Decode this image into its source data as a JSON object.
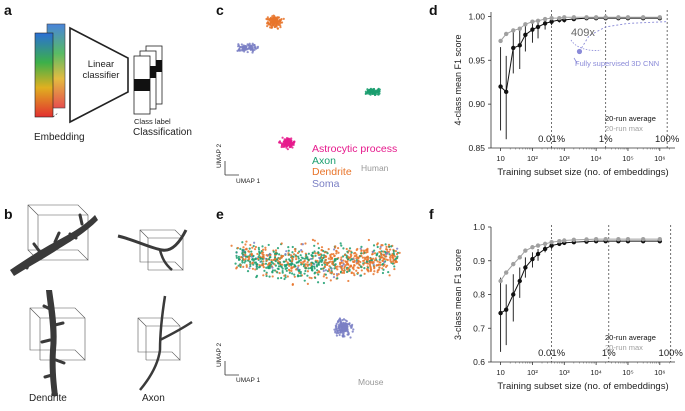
{
  "panels": {
    "a": {
      "letter": "a",
      "embedding_label": "Embedding",
      "classifier_label_line1": "Linear",
      "classifier_label_line2": "classifier",
      "class_label": "Class label",
      "classification_label": "Classification"
    },
    "b": {
      "letter": "b",
      "dendrite_label": "Dendrite",
      "axon_label": "Axon"
    },
    "c": {
      "letter": "c",
      "species": "Human",
      "umap_x": "UMAP 1",
      "umap_y": "UMAP 2",
      "legend": [
        {
          "name": "Astrocytic process",
          "color": "#e6198c"
        },
        {
          "name": "Axon",
          "color": "#1a9e6e"
        },
        {
          "name": "Dendrite",
          "color": "#e8742a"
        },
        {
          "name": "Soma",
          "color": "#7a7fc4"
        }
      ]
    },
    "d": {
      "letter": "d",
      "fold_annotation": "409x",
      "cnn_annotation": "Fully supervised 3D CNN",
      "legend_avg": "20-run average",
      "legend_max": "20-run max"
    },
    "e": {
      "letter": "e",
      "species": "Mouse",
      "umap_x": "UMAP 1",
      "umap_y": "UMAP 2"
    },
    "f": {
      "letter": "f",
      "legend_avg": "20-run average",
      "legend_max": "20-run max"
    }
  },
  "colors": {
    "astro": "#e6198c",
    "axon": "#1a9e6e",
    "dendrite": "#e8742a",
    "soma": "#7a7fc4",
    "avg": "#111111",
    "max": "#a0a0a0",
    "cnn": "#8a8ad8"
  },
  "chart_data": [
    {
      "id": "d",
      "type": "line",
      "xscale": "log",
      "xlim": [
        5,
        3000000
      ],
      "ylim": [
        0.85,
        1.005
      ],
      "ylabel": "4-class mean F1 score",
      "xlabel": "Training subset size (no. of embeddings)",
      "xticks": [
        "10",
        "10²",
        "10³",
        "10⁴",
        "10⁵",
        "10⁶"
      ],
      "yticks": [
        0.85,
        0.9,
        0.95,
        1.0
      ],
      "ytick_labels": [
        "0.85",
        "0.90",
        "0.95",
        "1.00"
      ],
      "percent_markers": [
        {
          "x": 400,
          "label": "0.01%"
        },
        {
          "x": 20000,
          "label": "1%"
        },
        {
          "x": 1700000,
          "label": "100%"
        }
      ],
      "series": [
        {
          "name": "20-run average",
          "x": [
            10,
            15,
            25,
            40,
            60,
            100,
            150,
            250,
            400,
            700,
            1000,
            2000,
            5000,
            10000,
            20000,
            50000,
            100000,
            300000,
            1000000
          ],
          "y": [
            0.92,
            0.914,
            0.964,
            0.967,
            0.979,
            0.985,
            0.988,
            0.992,
            0.994,
            0.996,
            0.996,
            0.997,
            0.998,
            0.998,
            0.998,
            0.998,
            0.998,
            0.998,
            0.998
          ],
          "lo": [
            0.87,
            0.86,
            0.935,
            0.94,
            0.96,
            0.97,
            0.975,
            0.985,
            0.99,
            0.993,
            0.993,
            0.995,
            0.996,
            0.997,
            0.997,
            0.997,
            0.997,
            0.997,
            0.997
          ],
          "hi": [
            0.965,
            0.955,
            0.985,
            0.985,
            0.99,
            0.993,
            0.995,
            0.997,
            0.998,
            0.998,
            0.999,
            0.999,
            0.999,
            0.999,
            0.999,
            0.999,
            0.999,
            0.999,
            0.999
          ]
        },
        {
          "name": "20-run max",
          "x": [
            10,
            15,
            25,
            40,
            60,
            100,
            150,
            250,
            400,
            700,
            1000,
            2000,
            5000,
            10000,
            20000,
            50000,
            100000,
            300000,
            1000000
          ],
          "y": [
            0.972,
            0.98,
            0.984,
            0.986,
            0.991,
            0.994,
            0.995,
            0.997,
            0.998,
            0.998,
            0.999,
            0.999,
            0.999,
            0.999,
            0.999,
            0.999,
            0.999,
            0.999,
            0.999
          ]
        },
        {
          "name": "Fully supervised 3D CNN",
          "x": [
            3000,
            6000,
            20000,
            100000,
            400000,
            1700000
          ],
          "y": [
            0.96,
            0.978,
            0.988,
            0.992,
            0.993,
            0.994
          ]
        }
      ]
    },
    {
      "id": "f",
      "type": "line",
      "xscale": "log",
      "xlim": [
        5,
        3000000
      ],
      "ylim": [
        0.6,
        1.0
      ],
      "ylabel": "3-class mean F1 score",
      "xlabel": "Training subset size (no. of embeddings)",
      "xticks": [
        "10",
        "10²",
        "10³",
        "10⁴",
        "10⁵",
        "10⁶"
      ],
      "yticks": [
        0.6,
        0.7,
        0.8,
        0.9,
        1.0
      ],
      "ytick_labels": [
        "0.6",
        "0.7",
        "0.8",
        "0.9",
        "1.0"
      ],
      "percent_markers": [
        {
          "x": 400,
          "label": "0.01%"
        },
        {
          "x": 25000,
          "label": "1%"
        },
        {
          "x": 2200000,
          "label": "100%"
        }
      ],
      "series": [
        {
          "name": "20-run average",
          "x": [
            10,
            15,
            25,
            40,
            60,
            100,
            150,
            250,
            400,
            700,
            1000,
            2000,
            5000,
            10000,
            20000,
            50000,
            100000,
            300000,
            1000000
          ],
          "y": [
            0.745,
            0.755,
            0.8,
            0.84,
            0.88,
            0.905,
            0.92,
            0.935,
            0.945,
            0.95,
            0.953,
            0.955,
            0.957,
            0.958,
            0.958,
            0.958,
            0.958,
            0.958,
            0.958
          ],
          "lo": [
            0.63,
            0.65,
            0.72,
            0.79,
            0.85,
            0.88,
            0.9,
            0.925,
            0.935,
            0.945,
            0.948,
            0.95,
            0.952,
            0.953,
            0.953,
            0.953,
            0.953,
            0.953,
            0.953
          ],
          "hi": [
            0.85,
            0.83,
            0.86,
            0.88,
            0.91,
            0.925,
            0.935,
            0.945,
            0.953,
            0.957,
            0.958,
            0.96,
            0.962,
            0.963,
            0.963,
            0.963,
            0.963,
            0.963,
            0.963
          ]
        },
        {
          "name": "20-run max",
          "x": [
            10,
            15,
            25,
            40,
            60,
            100,
            150,
            250,
            400,
            700,
            1000,
            2000,
            5000,
            10000,
            20000,
            50000,
            100000,
            300000,
            1000000
          ],
          "y": [
            0.84,
            0.865,
            0.89,
            0.91,
            0.93,
            0.94,
            0.945,
            0.95,
            0.955,
            0.958,
            0.96,
            0.962,
            0.963,
            0.964,
            0.964,
            0.964,
            0.964,
            0.964,
            0.964
          ]
        }
      ]
    }
  ]
}
